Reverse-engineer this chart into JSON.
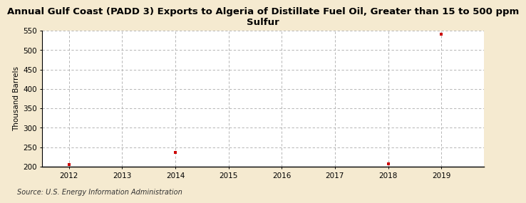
{
  "title": "Annual Gulf Coast (PADD 3) Exports to Algeria of Distillate Fuel Oil, Greater than 15 to 500 ppm\nSulfur",
  "ylabel": "Thousand Barrels",
  "source": "Source: U.S. Energy Information Administration",
  "x_years": [
    2012,
    2013,
    2014,
    2015,
    2016,
    2017,
    2018,
    2019
  ],
  "data_points": {
    "2012": 206,
    "2014": 237,
    "2018": 207,
    "2019": 541
  },
  "ylim": [
    200,
    550
  ],
  "yticks": [
    200,
    250,
    300,
    350,
    400,
    450,
    500,
    550
  ],
  "xlim": [
    2011.5,
    2019.8
  ],
  "background_color": "#f5ead0",
  "plot_bg_color": "#ffffff",
  "grid_color": "#aaaaaa",
  "marker_color": "#cc0000",
  "title_fontsize": 9.5,
  "axis_label_fontsize": 7.5,
  "tick_fontsize": 7.5,
  "source_fontsize": 7.0
}
